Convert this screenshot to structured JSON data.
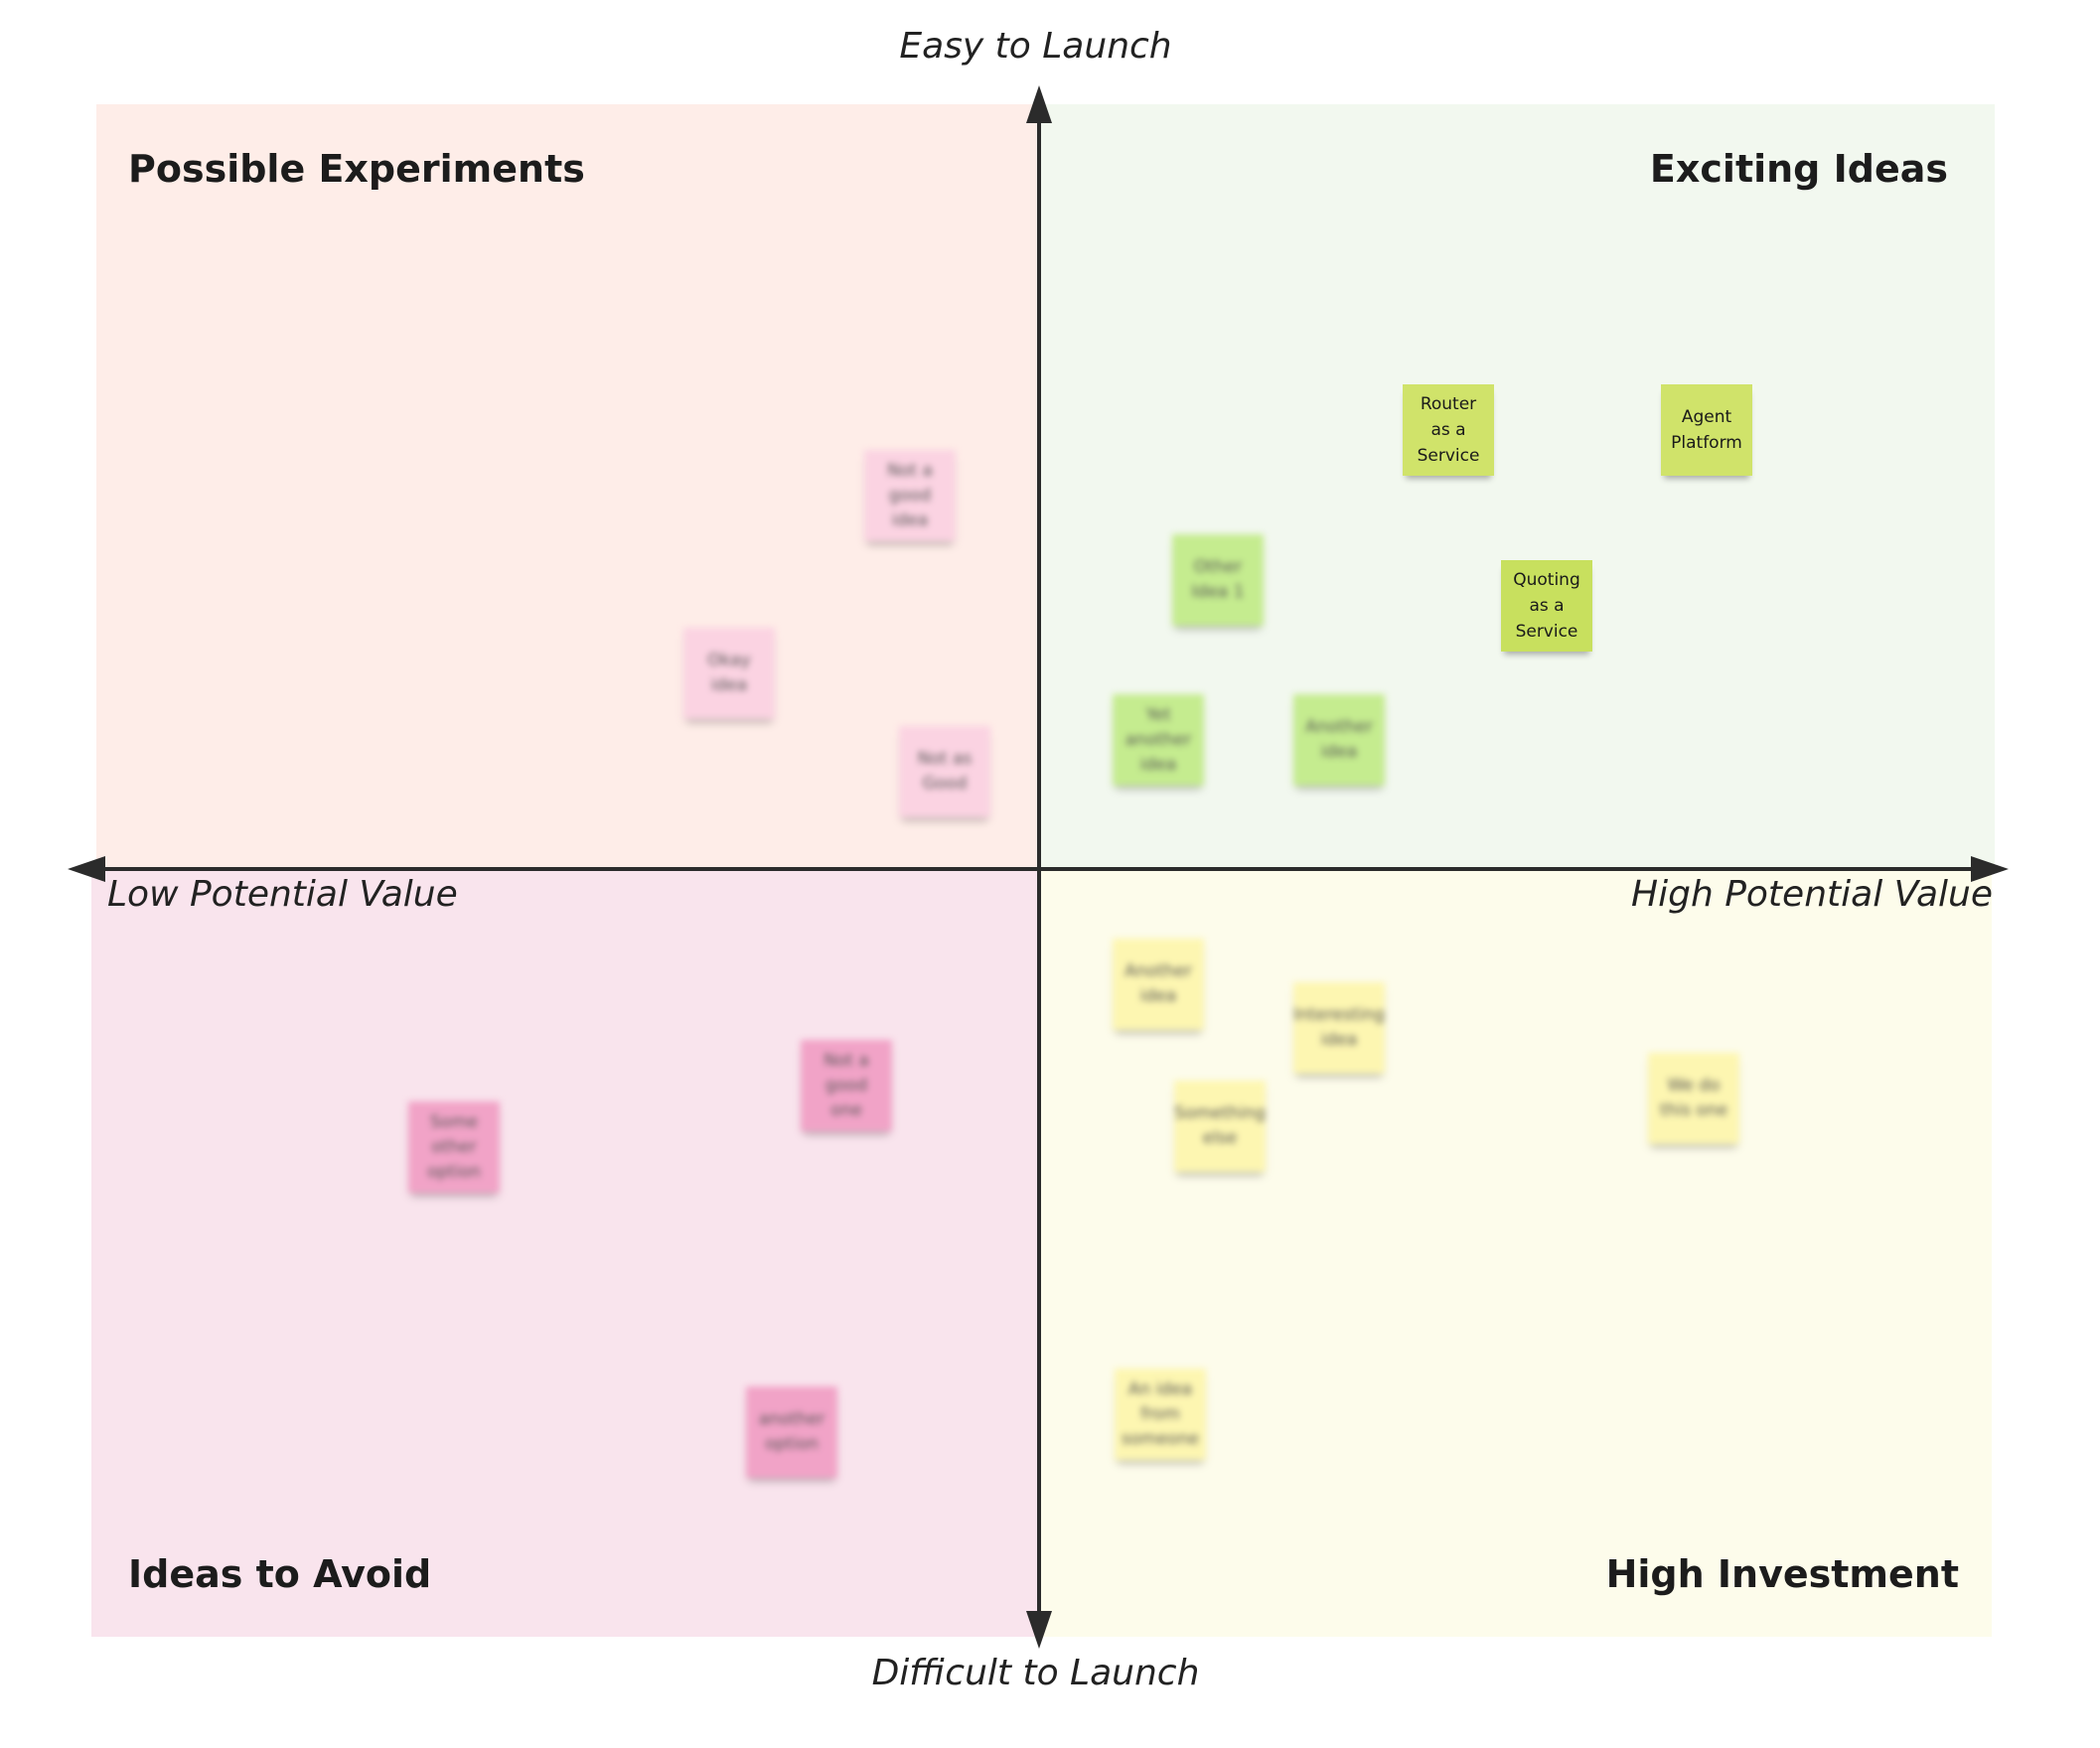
{
  "axes": {
    "top_label": "Easy to Launch",
    "bottom_label": "Difficult to Launch",
    "left_label": "Low Potential Value",
    "right_label": "High Potential Value"
  },
  "quadrants": {
    "top_left": {
      "title": "Possible Experiments",
      "color": "#feede8"
    },
    "top_right": {
      "title": "Exciting Ideas",
      "color": "#f2f8ef"
    },
    "bottom_left": {
      "title": "Ideas to Avoid",
      "color": "#f9e4ed"
    },
    "bottom_right": {
      "title": "High Investment",
      "color": "#fdfceb"
    }
  },
  "notes": {
    "router": {
      "text": "Router\nas a\nService",
      "color": "#d0e36a"
    },
    "agent": {
      "text": "Agent\nPlatform",
      "color": "#d0e36a"
    },
    "quoting": {
      "text": "Quoting\nas a\nService",
      "color": "#c8e05e"
    },
    "g1": {
      "text": "Other\nIdea 1",
      "color": "#c5ec8f"
    },
    "g2": {
      "text": "Yet\nanother\nidea",
      "color": "#c5ec8f"
    },
    "g3": {
      "text": "Another\nidea",
      "color": "#c5ec8f"
    },
    "p1": {
      "text": "Not a\ngood\nidea",
      "color": "#fbd3e2"
    },
    "p2": {
      "text": "Okay\nidea",
      "color": "#fbd3e2"
    },
    "p3": {
      "text": "Not as\nGood",
      "color": "#fbd3e2"
    },
    "m1": {
      "text": "Some\nother\noption",
      "color": "#f1a3c7"
    },
    "m2": {
      "text": "Not a\ngood\none",
      "color": "#f1a3c7"
    },
    "m3": {
      "text": "another\noption",
      "color": "#f1a3c7"
    },
    "y1": {
      "text": "Another\nidea",
      "color": "#fdf6b1"
    },
    "y2": {
      "text": "Interesting\nidea",
      "color": "#fdf6b1"
    },
    "y3": {
      "text": "Something\nelse",
      "color": "#fdf6b1"
    },
    "y4": {
      "text": "We do\nthis one",
      "color": "#fdf6b1"
    },
    "y5": {
      "text": "An idea\nfrom\nsomeone",
      "color": "#fdf6b1"
    }
  }
}
